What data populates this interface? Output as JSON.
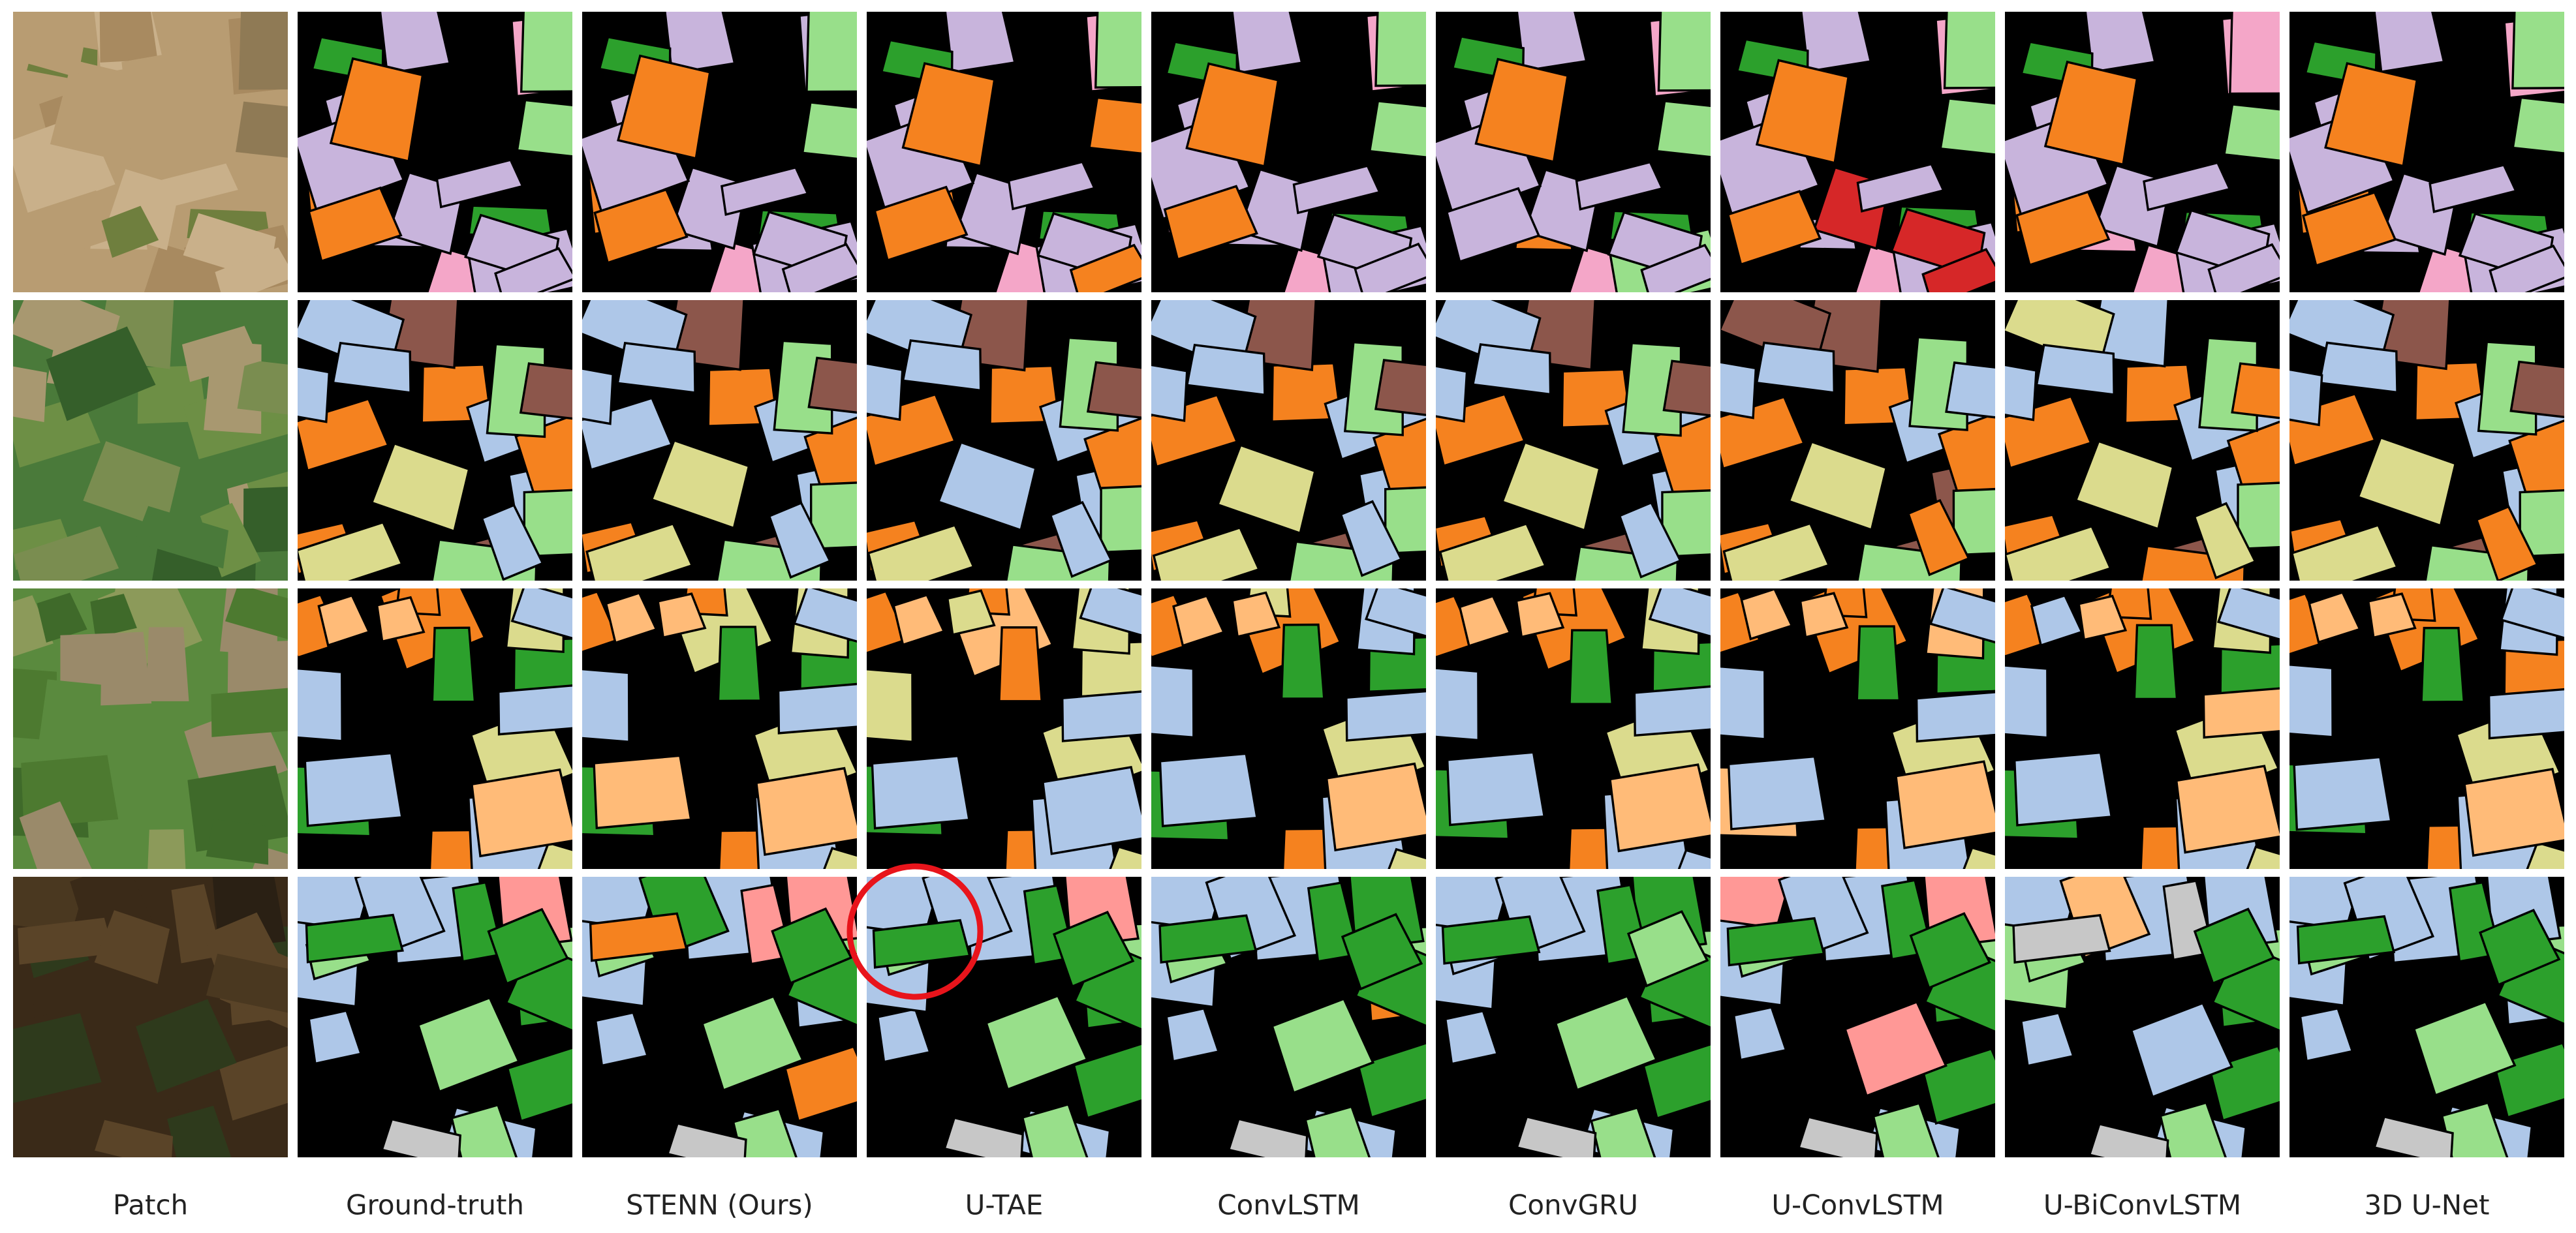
{
  "columns": [
    "Patch",
    "Ground-truth",
    "STENN (Ours)",
    "U-TAE",
    "ConvLSTM",
    "ConvGRU",
    "U-ConvLSTM",
    "U-BiConvLSTM",
    "3D U-Net"
  ]
}
